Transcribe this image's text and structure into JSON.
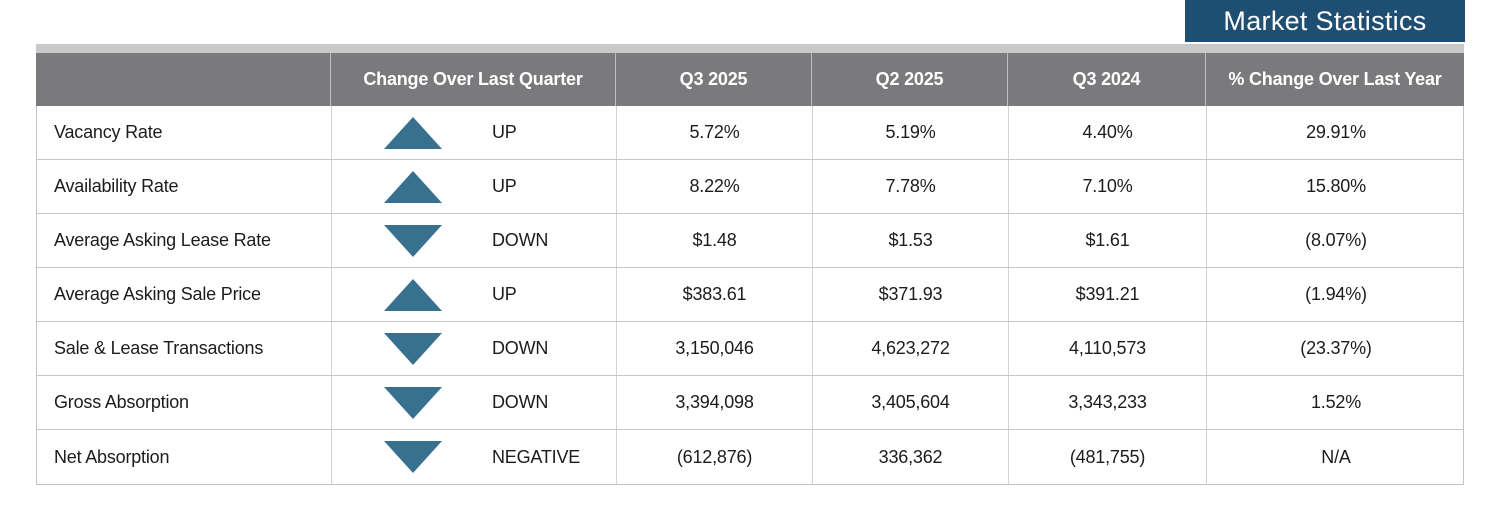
{
  "title": "Market Statistics",
  "colors": {
    "accent_blue": "#1e4e72",
    "triangle_blue": "#38718f",
    "header_gray": "#7a7a7c",
    "strip_gray": "#c9c9ca"
  },
  "chart_data": {
    "type": "table",
    "title": "Market Statistics",
    "columns": [
      "",
      "Change Over Last Quarter",
      "Q3 2025",
      "Q2 2025",
      "Q3 2024",
      "% Change Over Last Year"
    ],
    "rows": [
      {
        "metric": "Vacancy Rate",
        "direction": "up",
        "change": "UP",
        "q3_2025": "5.72%",
        "q2_2025": "5.19%",
        "q3_2024": "4.40%",
        "pct_change_over_last_year": "29.91%"
      },
      {
        "metric": "Availability Rate",
        "direction": "up",
        "change": "UP",
        "q3_2025": "8.22%",
        "q2_2025": "7.78%",
        "q3_2024": "7.10%",
        "pct_change_over_last_year": "15.80%"
      },
      {
        "metric": "Average Asking Lease Rate",
        "direction": "down",
        "change": "DOWN",
        "q3_2025": "$1.48",
        "q2_2025": "$1.53",
        "q3_2024": "$1.61",
        "pct_change_over_last_year": "(8.07%)"
      },
      {
        "metric": "Average Asking Sale Price",
        "direction": "up",
        "change": "UP",
        "q3_2025": "$383.61",
        "q2_2025": "$371.93",
        "q3_2024": "$391.21",
        "pct_change_over_last_year": "(1.94%)"
      },
      {
        "metric": "Sale & Lease Transactions",
        "direction": "down",
        "change": "DOWN",
        "q3_2025": "3,150,046",
        "q2_2025": "4,623,272",
        "q3_2024": "4,110,573",
        "pct_change_over_last_year": "(23.37%)"
      },
      {
        "metric": "Gross Absorption",
        "direction": "down",
        "change": "DOWN",
        "q3_2025": "3,394,098",
        "q2_2025": "3,405,604",
        "q3_2024": "3,343,233",
        "pct_change_over_last_year": "1.52%"
      },
      {
        "metric": "Net Absorption",
        "direction": "down",
        "change": "NEGATIVE",
        "q3_2025": "(612,876)",
        "q2_2025": "336,362",
        "q3_2024": "(481,755)",
        "pct_change_over_last_year": "N/A"
      }
    ]
  }
}
